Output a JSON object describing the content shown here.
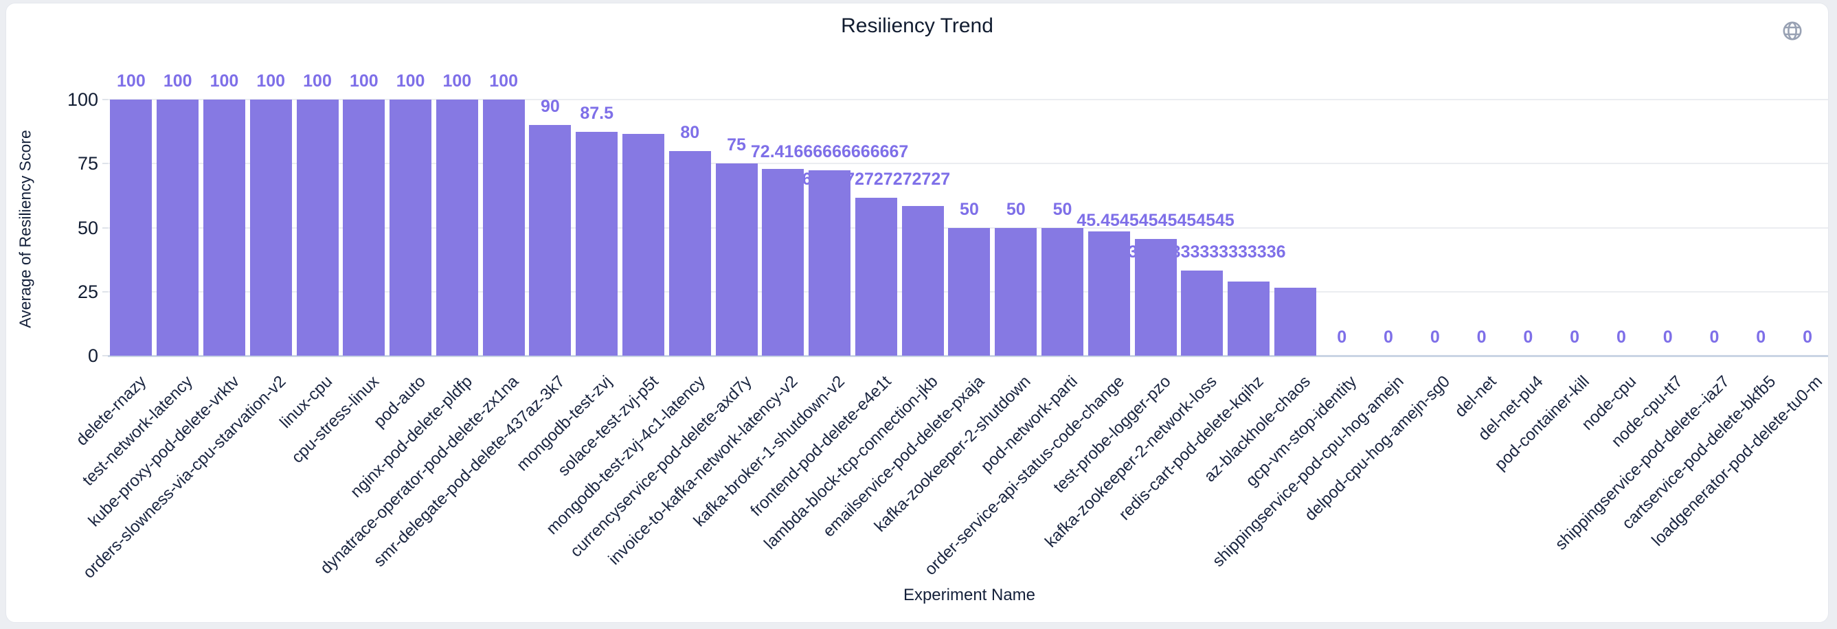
{
  "header": {
    "title": "Resiliency Trend",
    "icon": "globe"
  },
  "chart_data": {
    "type": "bar",
    "title": "Resiliency Trend",
    "xlabel": "Experiment Name",
    "ylabel": "Average of Resiliency Score",
    "ylim": [
      0,
      100
    ],
    "yticks": [
      0,
      25,
      50,
      75,
      100
    ],
    "grid": "horizontal",
    "legend": "none",
    "bar_color": "#8679e3",
    "value_label_color": "#7e6fe8",
    "bars": [
      {
        "name": "delete-rnazy",
        "value": 100,
        "label": "100"
      },
      {
        "name": "test-network-latency",
        "value": 100,
        "label": "100"
      },
      {
        "name": "kube-proxy-pod-delete-vrktv",
        "value": 100,
        "label": "100"
      },
      {
        "name": "orders-slowness-via-cpu-starvation-v2",
        "value": 100,
        "label": "100"
      },
      {
        "name": "linux-cpu",
        "value": 100,
        "label": "100"
      },
      {
        "name": "cpu-stress-linux",
        "value": 100,
        "label": "100"
      },
      {
        "name": "pod-auto",
        "value": 100,
        "label": "100"
      },
      {
        "name": "nginx-pod-delete-pldfp",
        "value": 100,
        "label": "100"
      },
      {
        "name": "dynatrace-operator-pod-delete-zx1na",
        "value": 100,
        "label": "100"
      },
      {
        "name": "smr-delegate-pod-delete-437az-3k7",
        "value": 90,
        "label": "90"
      },
      {
        "name": "mongodb-test-zvj",
        "value": 87.5,
        "label": "87.5"
      },
      {
        "name": "solace-test-zvj-p5t",
        "value": 86.6,
        "label": ""
      },
      {
        "name": "mongodb-test-zvj-4c1-latency",
        "value": 80,
        "label": "80"
      },
      {
        "name": "currencyservice-pod-delete-axd7y",
        "value": 75,
        "label": "75"
      },
      {
        "name": "invoice-to-kafka-network-latency-v2",
        "value": 73,
        "label": ""
      },
      {
        "name": "kafka-broker-1-shutdown-v2",
        "value": 72.41666666666667,
        "label": "72.41666666666667"
      },
      {
        "name": "frontend-pod-delete-e4e1t",
        "value": 61.7272727272727,
        "label": "61.7272727272727"
      },
      {
        "name": "lambda-block-tcp-connection-jkb",
        "value": 58.5,
        "label": ""
      },
      {
        "name": "emailservice-pod-delete-pxaja",
        "value": 50,
        "label": "50"
      },
      {
        "name": "kafka-zookeeper-2-shutdown",
        "value": 50,
        "label": "50"
      },
      {
        "name": "pod-network-parti",
        "value": 50,
        "label": "50"
      },
      {
        "name": "order-service-api-status-code-change",
        "value": 48.5,
        "label": ""
      },
      {
        "name": "test-probe-logger-pzo",
        "value": 45.45454545454545,
        "label": "45.45454545454545"
      },
      {
        "name": "kafka-zookeeper-2-network-loss",
        "value": 33.333333333333336,
        "label": "33.333333333333336"
      },
      {
        "name": "redis-cart-pod-delete-kqihz",
        "value": 29,
        "label": ""
      },
      {
        "name": "az-blackhole-chaos",
        "value": 26.5,
        "label": ""
      },
      {
        "name": "gcp-vm-stop-identity",
        "value": 0,
        "label": "0"
      },
      {
        "name": "shippingservice-pod-cpu-hog-amejn",
        "value": 0,
        "label": "0"
      },
      {
        "name": "delpod-cpu-hog-amejn-sg0",
        "value": 0,
        "label": "0"
      },
      {
        "name": "del-net",
        "value": 0,
        "label": "0"
      },
      {
        "name": "del-net-pu4",
        "value": 0,
        "label": "0"
      },
      {
        "name": "pod-container-kill",
        "value": 0,
        "label": "0"
      },
      {
        "name": "node-cpu",
        "value": 0,
        "label": "0"
      },
      {
        "name": "node-cpu-tt7",
        "value": 0,
        "label": "0"
      },
      {
        "name": "shippingservice-pod-delete--iaz7",
        "value": 0,
        "label": "0"
      },
      {
        "name": "cartservice-pod-delete-bkfb5",
        "value": 0,
        "label": "0"
      },
      {
        "name": "loadgenerator-pod-delete-tu0-m",
        "value": 0,
        "label": "0"
      }
    ]
  }
}
